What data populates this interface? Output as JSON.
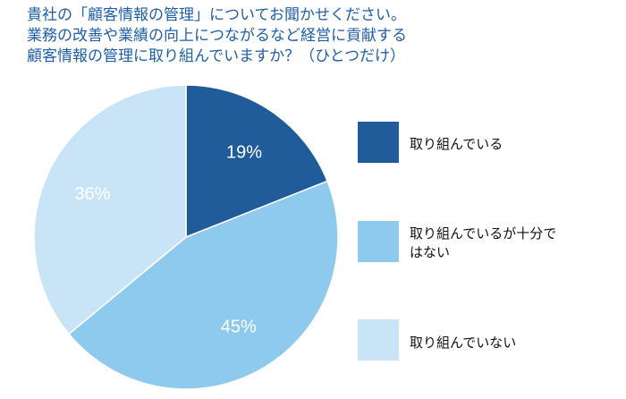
{
  "chart_data": {
    "type": "pie",
    "title_lines": [
      "貴社の「顧客情報の管理」についてお聞かせください。",
      "業務の改善や業績の向上につながるなど経営に貢献する",
      "顧客情報の管理に取り組んでいますか？（ひとつだけ）"
    ],
    "legend_position": "right",
    "slices": [
      {
        "label": "取り組んでいる",
        "value": 19,
        "value_label": "19%",
        "color": "#1f5c99"
      },
      {
        "label": "取り組んでいるが十分ではない",
        "label_lines": [
          "取り組んでいるが十分で",
          "はない"
        ],
        "value": 45,
        "value_label": "45%",
        "color": "#8ec9ee"
      },
      {
        "label": "取り組んでいない",
        "value": 36,
        "value_label": "36%",
        "color": "#c8e4f6"
      }
    ]
  }
}
